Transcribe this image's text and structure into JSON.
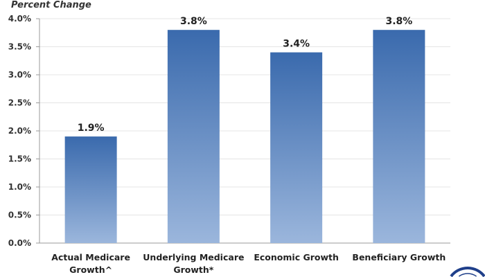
{
  "chart_data": {
    "type": "bar",
    "title": "",
    "ylabel": "Percent Change",
    "xlabel": "",
    "categories": [
      [
        "Actual Medicare",
        "Growth^"
      ],
      [
        "Underlying Medicare",
        "Growth*"
      ],
      [
        "Economic Growth"
      ],
      [
        "Beneficiary Growth"
      ]
    ],
    "values": [
      1.9,
      3.8,
      3.4,
      3.8
    ],
    "data_labels": [
      "1.9%",
      "3.8%",
      "3.4%",
      "3.8%"
    ],
    "yticks": [
      "0.0%",
      "0.5%",
      "1.0%",
      "1.5%",
      "2.0%",
      "2.5%",
      "3.0%",
      "3.5%",
      "4.0%"
    ],
    "ylim": [
      0,
      4.0
    ],
    "grid": true,
    "colors": {
      "bar_top": "#3a6aad",
      "bar_bottom": "#9bb6dc",
      "grid": "#e4e4e4",
      "logo": "#1f3f8a"
    }
  }
}
